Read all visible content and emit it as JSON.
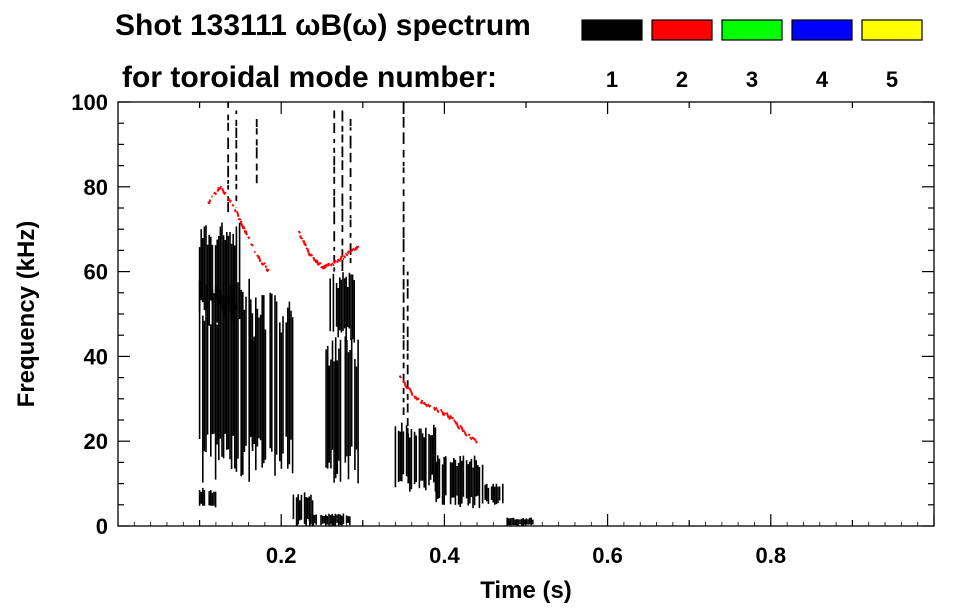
{
  "chart_data": {
    "type": "heatmap",
    "title_line1": "Shot 133111 ωB(ω) spectrum",
    "title_line2": "for toroidal mode number:",
    "xlabel": "Time (s)",
    "ylabel": "Frequency (kHz)",
    "xlim": [
      0.0,
      1.0
    ],
    "ylim": [
      0,
      100
    ],
    "x_ticks": [
      {
        "value": 0.2,
        "label": "0.2"
      },
      {
        "value": 0.4,
        "label": "0.4"
      },
      {
        "value": 0.6,
        "label": "0.6"
      },
      {
        "value": 0.8,
        "label": "0.8"
      }
    ],
    "y_ticks": [
      {
        "value": 0,
        "label": "0"
      },
      {
        "value": 20,
        "label": "20"
      },
      {
        "value": 40,
        "label": "40"
      },
      {
        "value": 60,
        "label": "60"
      },
      {
        "value": 80,
        "label": "80"
      },
      {
        "value": 100,
        "label": "100"
      }
    ],
    "legend": [
      {
        "label": "1",
        "color": "#000000"
      },
      {
        "label": "2",
        "color": "#ff0000"
      },
      {
        "label": "3",
        "color": "#00ff00"
      },
      {
        "label": "4",
        "color": "#0000ff"
      },
      {
        "label": "5",
        "color": "#ffff00"
      }
    ],
    "regions": [
      {
        "mode": 1,
        "t": [
          0.1,
          0.15
        ],
        "f": [
          47,
          72
        ]
      },
      {
        "mode": 1,
        "t": [
          0.1,
          0.165
        ],
        "f": [
          10,
          60
        ]
      },
      {
        "mode": 1,
        "t": [
          0.165,
          0.215
        ],
        "f": [
          10,
          55
        ]
      },
      {
        "mode": 1,
        "t": [
          0.215,
          0.24
        ],
        "f": [
          0,
          8
        ]
      },
      {
        "mode": 1,
        "t": [
          0.26,
          0.29
        ],
        "f": [
          43,
          60
        ]
      },
      {
        "mode": 1,
        "t": [
          0.255,
          0.295
        ],
        "f": [
          10,
          45
        ]
      },
      {
        "mode": 1,
        "t": [
          0.34,
          0.39
        ],
        "f": [
          8,
          25
        ]
      },
      {
        "mode": 1,
        "t": [
          0.39,
          0.45
        ],
        "f": [
          4,
          17
        ]
      },
      {
        "mode": 1,
        "t": [
          0.45,
          0.475
        ],
        "f": [
          5,
          10
        ]
      },
      {
        "mode": 1,
        "t": [
          0.475,
          0.51
        ],
        "f": [
          0,
          2
        ]
      },
      {
        "mode": 1,
        "t": [
          0.1,
          0.12
        ],
        "f": [
          4,
          9
        ]
      },
      {
        "mode": 1,
        "t": [
          0.235,
          0.285
        ],
        "f": [
          0,
          3
        ]
      }
    ],
    "streaks": [
      {
        "mode": 1,
        "t": 0.135,
        "f": [
          74,
          100
        ]
      },
      {
        "mode": 1,
        "t": 0.145,
        "f": [
          75,
          98
        ]
      },
      {
        "mode": 1,
        "t": 0.17,
        "f": [
          80,
          96
        ]
      },
      {
        "mode": 1,
        "t": 0.265,
        "f": [
          60,
          98
        ]
      },
      {
        "mode": 1,
        "t": 0.275,
        "f": [
          60,
          98
        ]
      },
      {
        "mode": 1,
        "t": 0.285,
        "f": [
          62,
          96
        ]
      },
      {
        "mode": 1,
        "t": 0.35,
        "f": [
          25,
          100
        ]
      },
      {
        "mode": 1,
        "t": 0.355,
        "f": [
          20,
          60
        ]
      }
    ],
    "series": [
      {
        "mode": 2,
        "points": [
          [
            0.11,
            76
          ],
          [
            0.125,
            80
          ],
          [
            0.14,
            76
          ],
          [
            0.155,
            70
          ],
          [
            0.17,
            64
          ],
          [
            0.185,
            60
          ]
        ]
      },
      {
        "mode": 2,
        "points": [
          [
            0.22,
            70
          ],
          [
            0.235,
            64
          ],
          [
            0.25,
            61
          ],
          [
            0.265,
            62
          ],
          [
            0.28,
            64
          ],
          [
            0.295,
            66
          ]
        ]
      },
      {
        "mode": 2,
        "points": [
          [
            0.345,
            35
          ],
          [
            0.365,
            30
          ],
          [
            0.385,
            28
          ],
          [
            0.405,
            26
          ],
          [
            0.425,
            22
          ],
          [
            0.44,
            20
          ]
        ]
      }
    ]
  }
}
